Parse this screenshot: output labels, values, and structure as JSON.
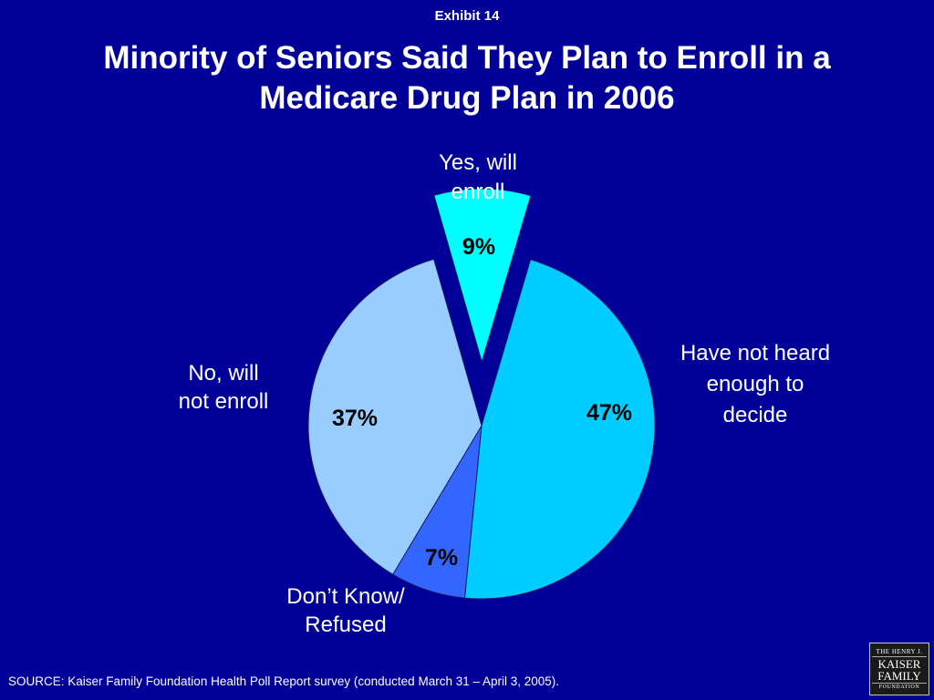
{
  "exhibit_label": "Exhibit 14",
  "title_line1": "Minority of Seniors Said They Plan to Enroll in a",
  "title_line2": "Medicare Drug Plan in 2006",
  "source": "SOURCE: Kaiser Family Foundation Health Poll Report survey (conducted March 31 – April 3, 2005).",
  "logo": {
    "line1": "THE HENRY J.",
    "line2": "KAISER",
    "line3": "FAMILY",
    "line4": "FOUNDATION"
  },
  "colors": {
    "background": "#000099",
    "yes": "#00ffff",
    "not_heard": "#00ccff",
    "dont_know": "#3366ff",
    "no": "#99ccff"
  },
  "chart_data": {
    "type": "pie",
    "title": "Minority of Seniors Said They Plan to Enroll in a Medicare Drug Plan in 2006",
    "slices": [
      {
        "label": [
          "Yes, will",
          "enroll"
        ],
        "value": 9,
        "value_label": "9%",
        "color": "#00ffff",
        "exploded": true
      },
      {
        "label": [
          "Have not heard",
          "enough to",
          "decide"
        ],
        "value": 47,
        "value_label": "47%",
        "color": "#00ccff",
        "exploded": false
      },
      {
        "label": [
          "Don’t Know/",
          "Refused"
        ],
        "value": 7,
        "value_label": "7%",
        "color": "#3366ff",
        "exploded": false
      },
      {
        "label": [
          "No, will",
          "not enroll"
        ],
        "value": 37,
        "value_label": "37%",
        "color": "#99ccff",
        "exploded": false
      }
    ]
  }
}
